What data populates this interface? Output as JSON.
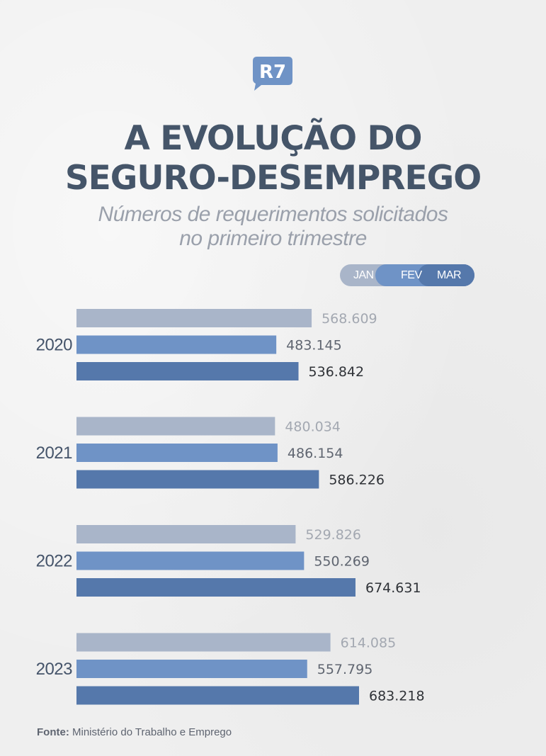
{
  "brand": {
    "logo_text": "R7"
  },
  "header": {
    "title_lines": [
      "A EVOLUÇÃO DO",
      "SEGURO-DESEMPREGO"
    ],
    "subtitle_lines": [
      "Números de requerimentos solicitados",
      "no primeiro trimestre"
    ]
  },
  "colors": {
    "title": "#455569",
    "subtitle": "#9aa0ab",
    "jan": "#a9b5c9",
    "fev": "#6f93c6",
    "mar": "#5578ab",
    "label_jan": "#a3a8b1",
    "label_fev": "#5f6570",
    "label_mar": "#2f3237",
    "year_label": "#45546a"
  },
  "legend": {
    "jan": "JAN",
    "fev": "FEV",
    "mar": "MAR"
  },
  "chart_data": {
    "type": "bar",
    "orientation": "horizontal",
    "categories": [
      "2020",
      "2021",
      "2022",
      "2023"
    ],
    "series": [
      {
        "name": "JAN",
        "values": [
          568609,
          480034,
          529826,
          614085
        ],
        "labels": [
          "568.609",
          "480.034",
          "529.826",
          "614.085"
        ]
      },
      {
        "name": "FEV",
        "values": [
          483145,
          486154,
          550269,
          557795
        ],
        "labels": [
          "483.145",
          "486.154",
          "550.269",
          "557.795"
        ]
      },
      {
        "name": "MAR",
        "values": [
          536842,
          586226,
          674631,
          683218
        ],
        "labels": [
          "536.842",
          "586.226",
          "674.631",
          "683.218"
        ]
      }
    ],
    "title": "A EVOLUÇÃO DO SEGURO-DESEMPREGO",
    "subtitle": "Números de requerimentos solicitados no primeiro trimestre",
    "xlim": [
      0,
      683218
    ],
    "legend_position": "top-right",
    "grid": false
  },
  "footer": {
    "source_label": "Fonte:",
    "source_text": " Ministério do Trabalho e Emprego"
  }
}
